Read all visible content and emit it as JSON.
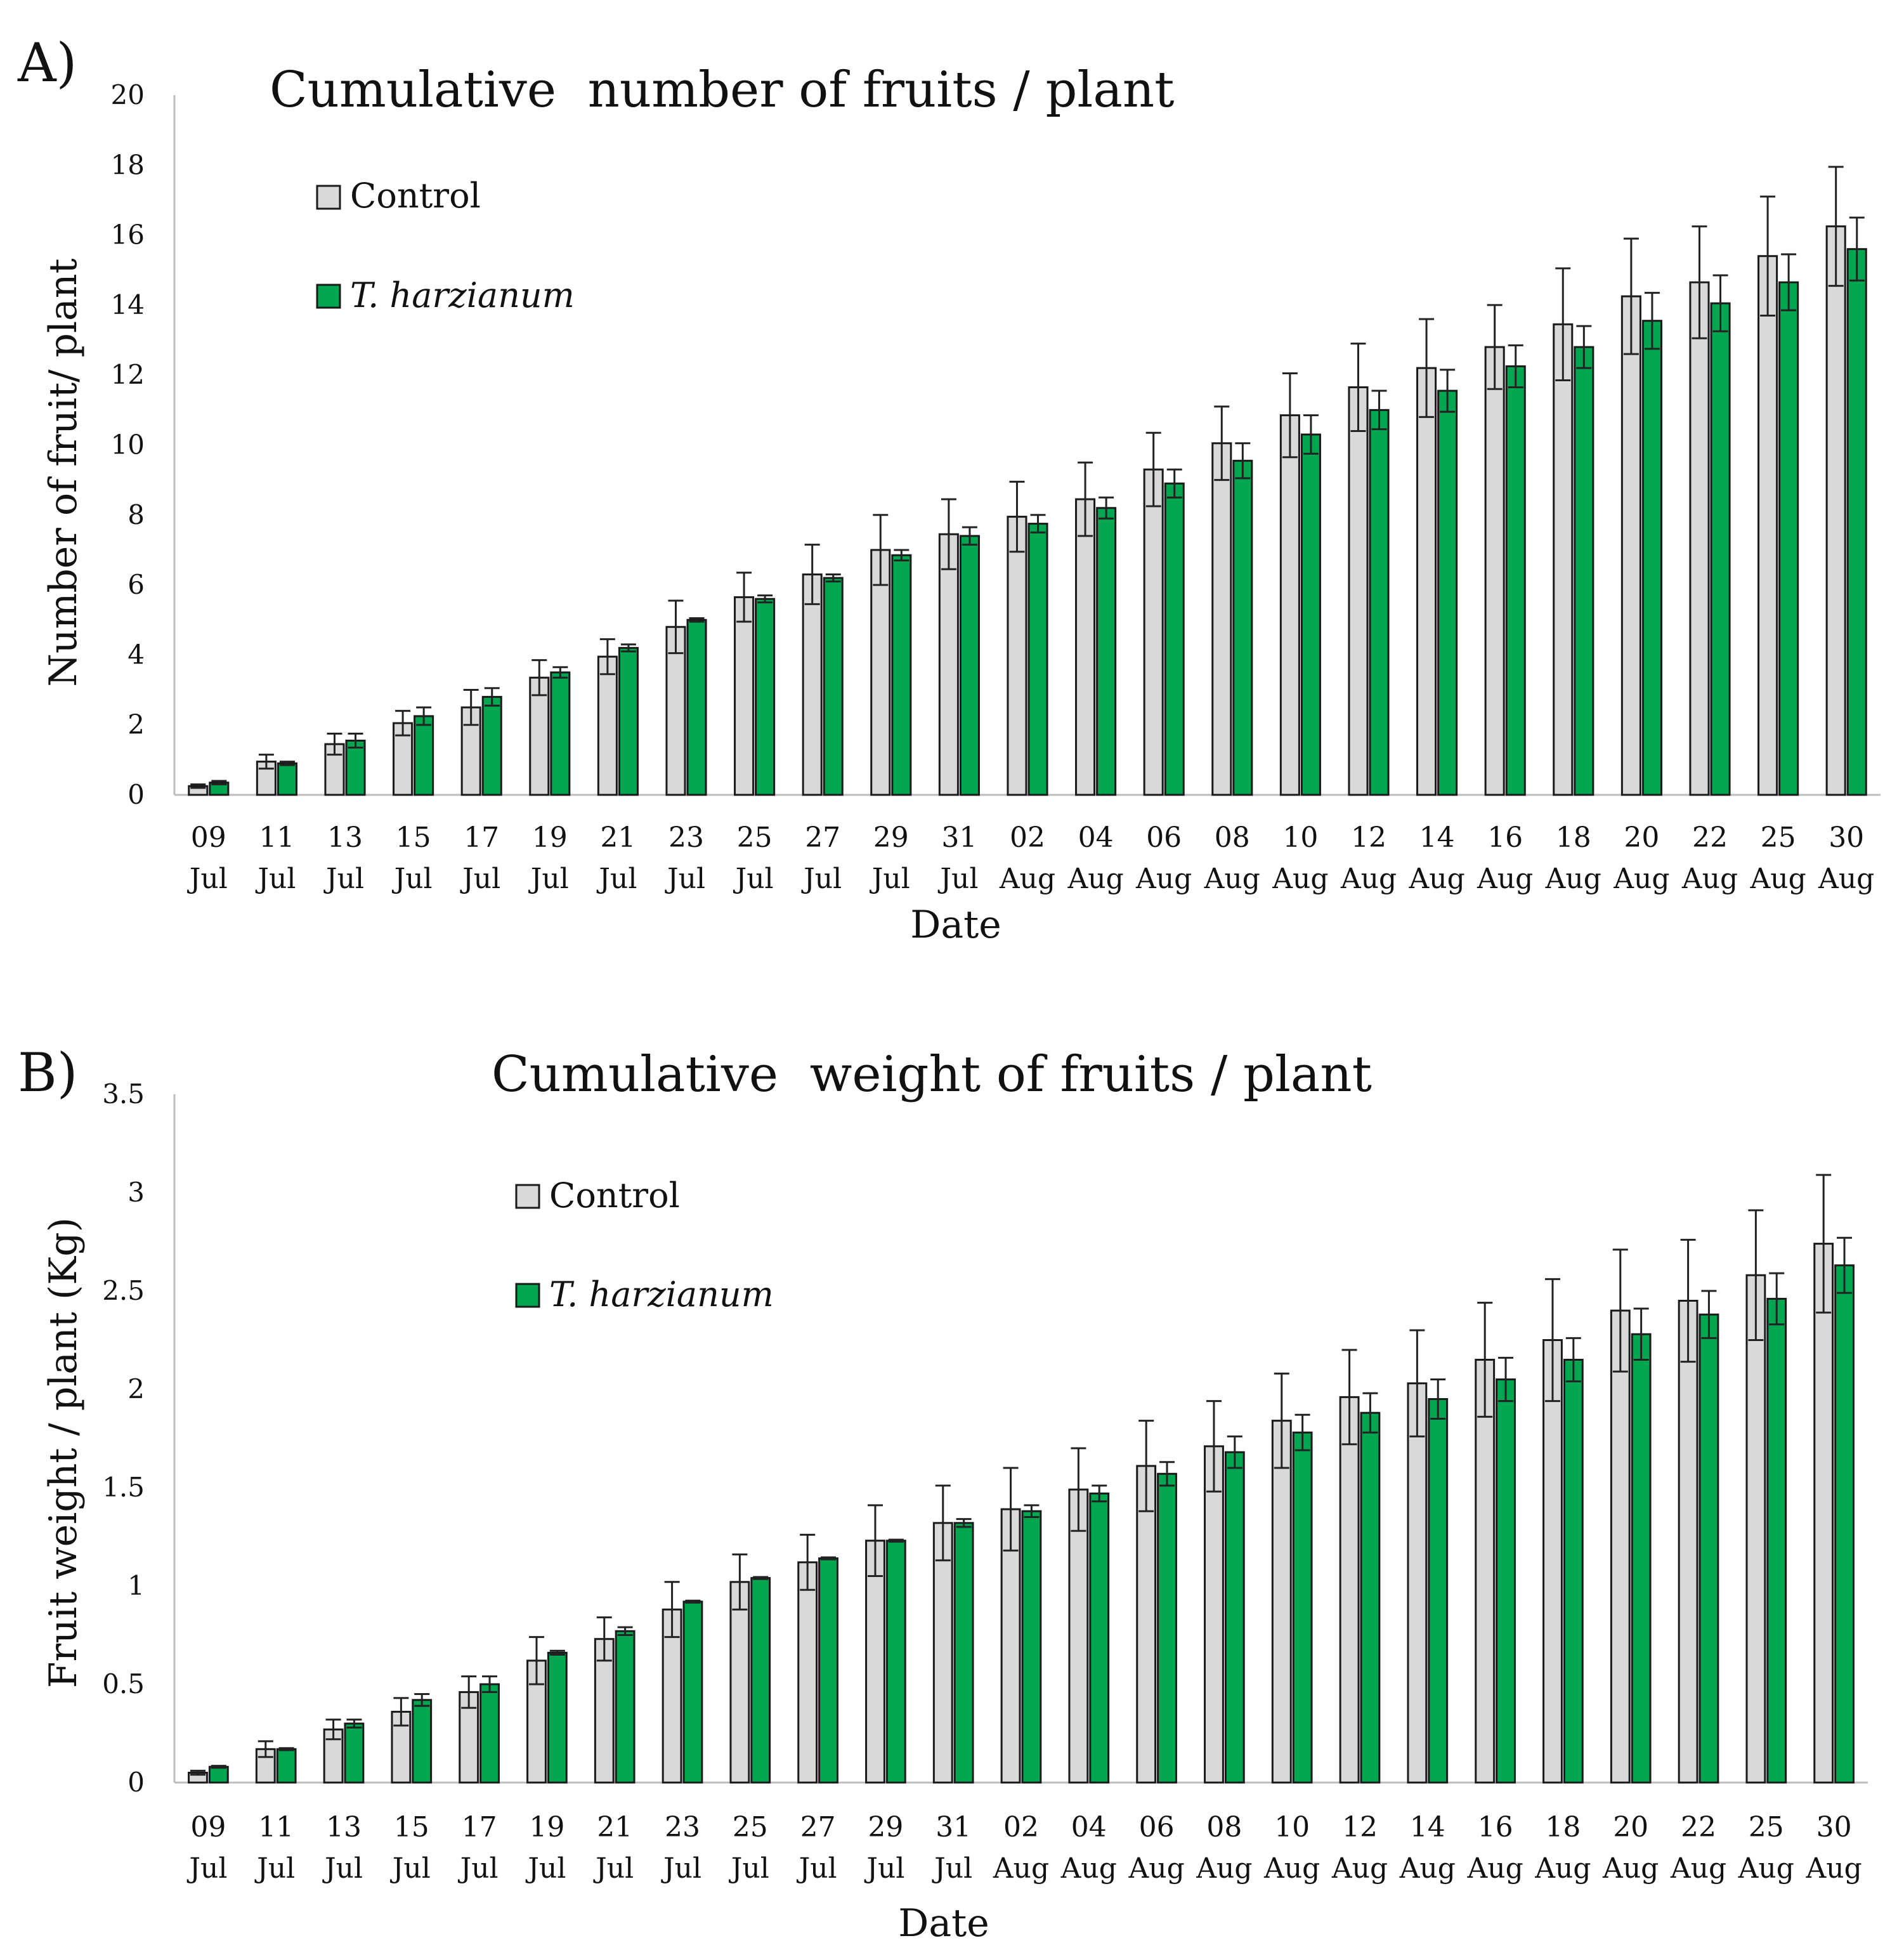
{
  "figure_labels": {
    "a": "A)",
    "b": "B)"
  },
  "colors": {
    "control": "#d9d9d9",
    "treatment": "#00a650",
    "axis": "#bdbdbd"
  },
  "chart_data": [
    {
      "id": "A",
      "type": "bar",
      "title": "Cumulative  number of fruits / plant",
      "xlabel": "Date",
      "ylabel": "Number of fruit/ plant",
      "ylim": [
        0,
        20
      ],
      "yticks": [
        "0",
        "2",
        "4",
        "6",
        "8",
        "10",
        "12",
        "14",
        "16",
        "18",
        "20"
      ],
      "categories": [
        [
          "09",
          "Jul"
        ],
        [
          "11",
          "Jul"
        ],
        [
          "13",
          "Jul"
        ],
        [
          "15",
          "Jul"
        ],
        [
          "17",
          "Jul"
        ],
        [
          "19",
          "Jul"
        ],
        [
          "21",
          "Jul"
        ],
        [
          "23",
          "Jul"
        ],
        [
          "25",
          "Jul"
        ],
        [
          "27",
          "Jul"
        ],
        [
          "29",
          "Jul"
        ],
        [
          "31",
          "Jul"
        ],
        [
          "02",
          "Aug"
        ],
        [
          "04",
          "Aug"
        ],
        [
          "06",
          "Aug"
        ],
        [
          "08",
          "Aug"
        ],
        [
          "10",
          "Aug"
        ],
        [
          "12",
          "Aug"
        ],
        [
          "14",
          "Aug"
        ],
        [
          "16",
          "Aug"
        ],
        [
          "18",
          "Aug"
        ],
        [
          "20",
          "Aug"
        ],
        [
          "22",
          "Aug"
        ],
        [
          "25",
          "Aug"
        ],
        [
          "30",
          "Aug"
        ]
      ],
      "legend": {
        "control": "Control",
        "treatment": "T. harzianum"
      },
      "series": [
        {
          "name": "Control",
          "values": [
            0.25,
            0.95,
            1.45,
            2.05,
            2.5,
            3.35,
            3.95,
            4.8,
            5.65,
            6.3,
            7.0,
            7.45,
            7.95,
            8.45,
            9.3,
            10.05,
            10.85,
            11.65,
            12.2,
            12.8,
            13.45,
            14.25,
            14.65,
            15.4,
            16.25
          ],
          "errors": [
            0.05,
            0.2,
            0.3,
            0.35,
            0.5,
            0.5,
            0.5,
            0.75,
            0.7,
            0.85,
            1.0,
            1.0,
            1.0,
            1.05,
            1.05,
            1.05,
            1.2,
            1.25,
            1.4,
            1.2,
            1.6,
            1.65,
            1.6,
            1.7,
            1.7
          ]
        },
        {
          "name": "T. harzianum",
          "values": [
            0.35,
            0.9,
            1.55,
            2.25,
            2.8,
            3.5,
            4.2,
            5.0,
            5.6,
            6.2,
            6.85,
            7.4,
            7.75,
            8.2,
            8.9,
            9.55,
            10.3,
            11.0,
            11.55,
            12.25,
            12.8,
            13.55,
            14.05,
            14.65,
            15.6
          ],
          "errors": [
            0.05,
            0.05,
            0.2,
            0.25,
            0.25,
            0.15,
            0.1,
            0.05,
            0.1,
            0.1,
            0.15,
            0.25,
            0.25,
            0.3,
            0.4,
            0.5,
            0.55,
            0.55,
            0.6,
            0.6,
            0.6,
            0.8,
            0.8,
            0.8,
            0.9
          ]
        }
      ]
    },
    {
      "id": "B",
      "type": "bar",
      "title": "Cumulative  weight of fruits / plant",
      "xlabel": "Date",
      "ylabel": "Fruit weight / plant (Kg)",
      "ylim": [
        0,
        3.5
      ],
      "yticks": [
        "0",
        "0.5",
        "1",
        "1.5",
        "2",
        "2.5",
        "3",
        "3.5"
      ],
      "categories": [
        [
          "09",
          "Jul"
        ],
        [
          "11",
          "Jul"
        ],
        [
          "13",
          "Jul"
        ],
        [
          "15",
          "Jul"
        ],
        [
          "17",
          "Jul"
        ],
        [
          "19",
          "Jul"
        ],
        [
          "21",
          "Jul"
        ],
        [
          "23",
          "Jul"
        ],
        [
          "25",
          "Jul"
        ],
        [
          "27",
          "Jul"
        ],
        [
          "29",
          "Jul"
        ],
        [
          "31",
          "Jul"
        ],
        [
          "02",
          "Aug"
        ],
        [
          "04",
          "Aug"
        ],
        [
          "06",
          "Aug"
        ],
        [
          "08",
          "Aug"
        ],
        [
          "10",
          "Aug"
        ],
        [
          "12",
          "Aug"
        ],
        [
          "14",
          "Aug"
        ],
        [
          "16",
          "Aug"
        ],
        [
          "18",
          "Aug"
        ],
        [
          "20",
          "Aug"
        ],
        [
          "22",
          "Aug"
        ],
        [
          "25",
          "Aug"
        ],
        [
          "30",
          "Aug"
        ]
      ],
      "legend": {
        "control": "Control",
        "treatment": "T. harzianum"
      },
      "series": [
        {
          "name": "Control",
          "values": [
            0.05,
            0.17,
            0.27,
            0.36,
            0.46,
            0.62,
            0.73,
            0.88,
            1.02,
            1.12,
            1.23,
            1.32,
            1.39,
            1.49,
            1.61,
            1.71,
            1.84,
            1.96,
            2.03,
            2.15,
            2.25,
            2.4,
            2.45,
            2.58,
            2.74
          ],
          "errors": [
            0.01,
            0.04,
            0.05,
            0.07,
            0.08,
            0.12,
            0.11,
            0.14,
            0.14,
            0.14,
            0.18,
            0.19,
            0.21,
            0.21,
            0.23,
            0.23,
            0.24,
            0.24,
            0.27,
            0.29,
            0.31,
            0.31,
            0.31,
            0.33,
            0.35
          ]
        },
        {
          "name": "T. harzianum",
          "values": [
            0.08,
            0.17,
            0.3,
            0.42,
            0.5,
            0.66,
            0.77,
            0.92,
            1.04,
            1.14,
            1.23,
            1.32,
            1.38,
            1.47,
            1.57,
            1.68,
            1.78,
            1.88,
            1.95,
            2.05,
            2.15,
            2.28,
            2.38,
            2.46,
            2.63
          ],
          "errors": [
            0.005,
            0.005,
            0.02,
            0.03,
            0.04,
            0.01,
            0.02,
            0.005,
            0.005,
            0.005,
            0.005,
            0.02,
            0.03,
            0.04,
            0.06,
            0.08,
            0.09,
            0.1,
            0.1,
            0.11,
            0.11,
            0.13,
            0.12,
            0.13,
            0.14
          ]
        }
      ]
    }
  ]
}
